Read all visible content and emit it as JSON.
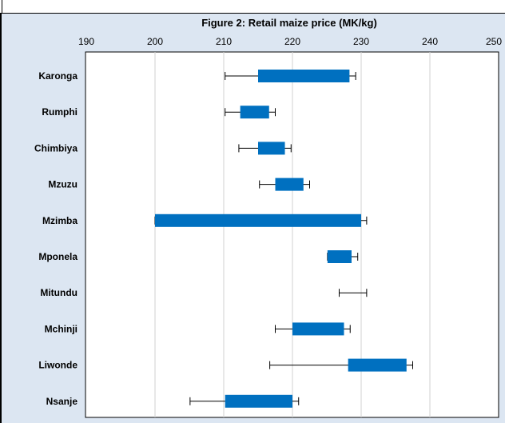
{
  "chart_data": {
    "type": "bar",
    "orientation": "horizontal-range",
    "title": "Figure 2: Retail maize price (MK/kg)",
    "xlabel": "",
    "ylabel": "",
    "xlim": [
      190,
      250
    ],
    "x_ticks": [
      "190",
      "200",
      "210",
      "220",
      "230",
      "240",
      "250"
    ],
    "grid": true,
    "bar_color": "#0070c0",
    "categories": [
      "Karonga",
      "Rumphi",
      "Chimbiya",
      "Mzuzu",
      "Mzimba",
      "Mponela",
      "Mitundu",
      "Mchinji",
      "Liwonde",
      "Nsanje"
    ],
    "series": [
      {
        "low": 215,
        "high": 228.3,
        "whisker_min": 210.2,
        "whisker_max": 229.2
      },
      {
        "low": 212.4,
        "high": 216.6,
        "whisker_min": 210.2,
        "whisker_max": 217.5
      },
      {
        "low": 215,
        "high": 218.9,
        "whisker_min": 212.2,
        "whisker_max": 219.8
      },
      {
        "low": 217.5,
        "high": 221.6,
        "whisker_min": 215.2,
        "whisker_max": 222.5
      },
      {
        "low": 200,
        "high": 230,
        "whisker_min": 200,
        "whisker_max": 230.8
      },
      {
        "low": 225.1,
        "high": 228.6,
        "whisker_min": 225.1,
        "whisker_max": 229.5
      },
      {
        "low": null,
        "high": null,
        "whisker_min": 226.8,
        "whisker_max": 230.8
      },
      {
        "low": 220,
        "high": 227.5,
        "whisker_min": 217.5,
        "whisker_max": 228.4
      },
      {
        "low": 228.1,
        "high": 236.6,
        "whisker_min": 216.7,
        "whisker_max": 237.5
      },
      {
        "low": 210.2,
        "high": 220,
        "whisker_min": 205.1,
        "whisker_max": 220.9
      }
    ]
  }
}
